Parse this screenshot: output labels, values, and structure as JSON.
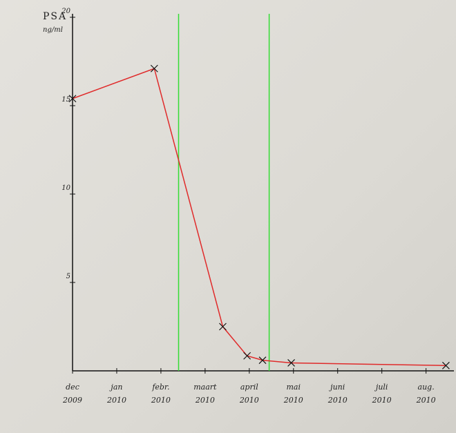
{
  "chart_data": {
    "type": "line",
    "y_label": "PSA",
    "y_unit": "ng/ml",
    "x": [
      0,
      1.85,
      3.4,
      3.95,
      4.3,
      4.95,
      8.45
    ],
    "series": [
      {
        "name": "PSA",
        "color": "#e02a2a",
        "values": [
          15.4,
          17.1,
          2.5,
          0.85,
          0.6,
          0.45,
          0.3
        ]
      }
    ],
    "xlim": [
      0,
      8.6
    ],
    "xticks": [
      {
        "value": 0,
        "label": "dec\n2009"
      },
      {
        "value": 1,
        "label": "jan\n2010"
      },
      {
        "value": 2,
        "label": "febr.\n2010"
      },
      {
        "value": 3,
        "label": "maart\n2010"
      },
      {
        "value": 4,
        "label": "april\n2010"
      },
      {
        "value": 5,
        "label": "mai\n2010"
      },
      {
        "value": 6,
        "label": "juni\n2010"
      },
      {
        "value": 7,
        "label": "juli\n2010"
      },
      {
        "value": 8,
        "label": "aug.\n2010"
      }
    ],
    "ylim": [
      0,
      20
    ],
    "yticks": [
      5,
      10,
      15,
      20
    ],
    "vertical_lines": {
      "x": [
        2.4,
        4.45
      ],
      "color": "#33dd33"
    }
  }
}
